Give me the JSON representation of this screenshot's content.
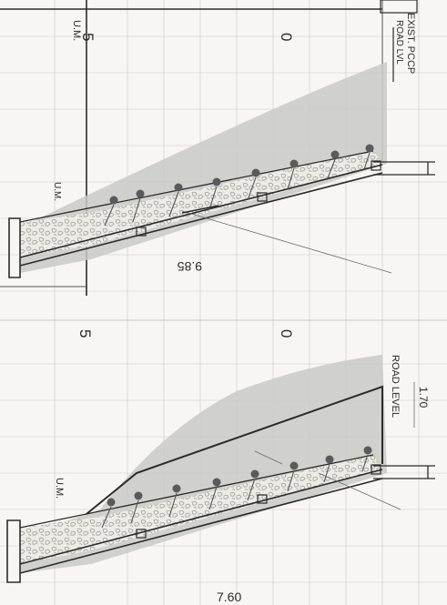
{
  "top_section": {
    "label_exist": "EXIST. PCCP",
    "label_road": "ROAD LVL",
    "label_um_top": "U.M.",
    "label_um_mid": "U.M.",
    "grid_5": "5",
    "grid_0": "0",
    "dim_width": "9.85"
  },
  "bottom_section": {
    "label_road": "ROAD LEVEL",
    "label_um": "U.M.",
    "grid_5": "5",
    "grid_0": "0",
    "dim_height": "1.70",
    "dim_width": "7.60"
  },
  "colors": {
    "line": "#2b2b2b",
    "grid": "#c9c9c4",
    "fill": "#c9c9c6",
    "paper": "#f7f6f2"
  }
}
